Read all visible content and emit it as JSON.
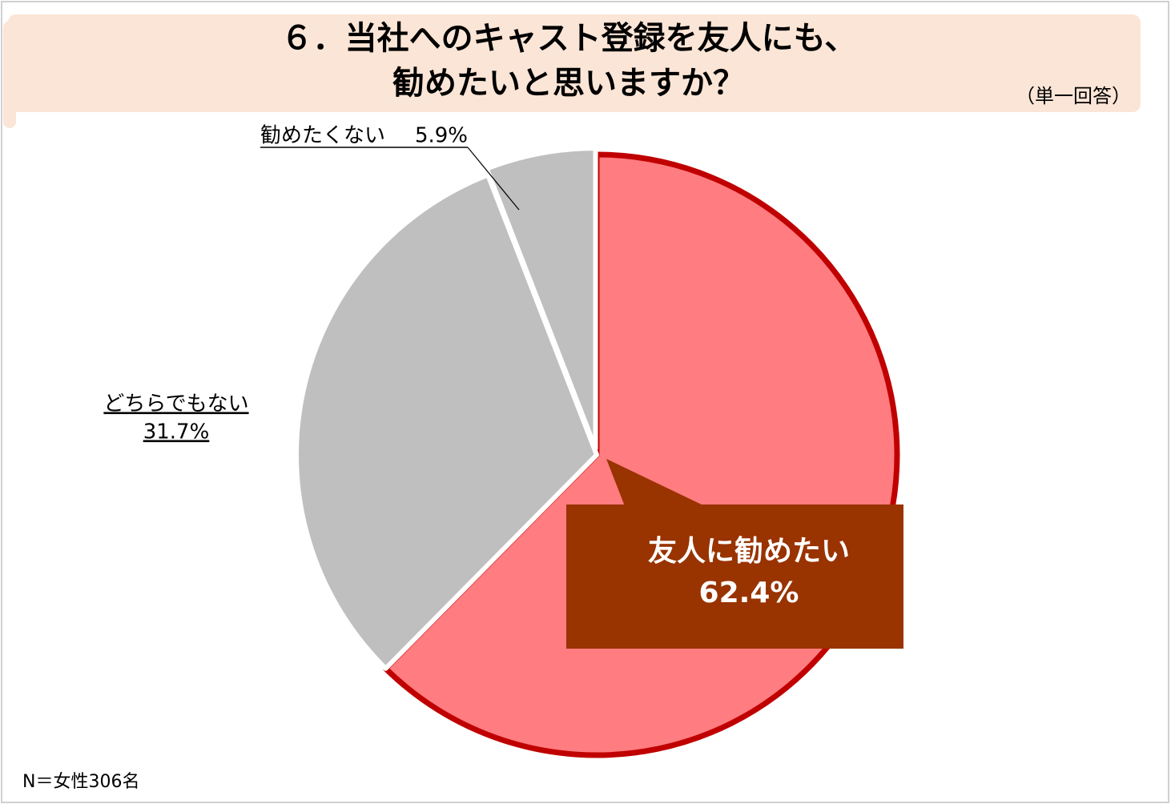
{
  "chart_data": {
    "type": "pie",
    "title_lines": [
      "６．当社へのキャスト登録を友人にも、",
      "勧めたいと思いますか？"
    ],
    "subtitle": "（単一回答）",
    "note": "N＝女性306名",
    "categories": [
      "友人に勧めたい",
      "どちらでもない",
      "勧めたくない"
    ],
    "values": [
      62.4,
      31.7,
      5.9
    ],
    "value_labels": [
      "62.4%",
      "31.7%",
      "5.9%"
    ],
    "colors": [
      "#ff7c80",
      "#bfbfbf",
      "#bfbfbf"
    ]
  }
}
